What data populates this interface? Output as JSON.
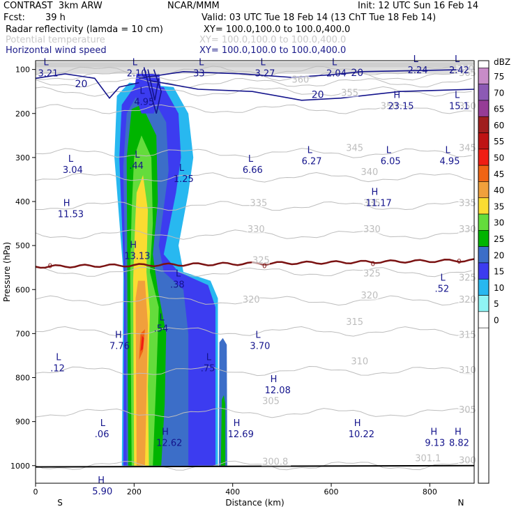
{
  "header": {
    "model": "CONTRAST  3km ARW",
    "center": "NCAR/MMM",
    "init": "Init: 12 UTC Sun 16 Feb 14",
    "fcst_label": "Fcst:",
    "fcst_value": "39 h",
    "valid": "Valid: 03 UTC Tue 18 Feb 14 (13 ChT Tue 18 Feb 14)",
    "fields": [
      {
        "name": "Radar reflectivity (lamda = 10 cm)",
        "xy": "XY= 100.0,100.0 to 100.0,400.0",
        "color": "#000000"
      },
      {
        "name": "Potential temperature",
        "xy": "XY= 100.0,100.0 to 100.0,400.0",
        "color": "#c8c8c8"
      },
      {
        "name": "Horizontal wind speed",
        "xy": "XY= 100.0,100.0 to 100.0,400.0",
        "color": "#1b1b8a"
      }
    ]
  },
  "chart_data": {
    "type": "cross-section",
    "xlabel": "Distance (km)",
    "ylabel": "Pressure (hPa)",
    "xlim": [
      0,
      890
    ],
    "ylim": [
      1040,
      80
    ],
    "x_ticks": [
      0,
      200,
      400,
      600,
      800
    ],
    "y_ticks": [
      100,
      200,
      300,
      400,
      500,
      600,
      700,
      800,
      900,
      1000
    ],
    "left_end_label": "S",
    "right_end_label": "N",
    "colorbar": {
      "unit": "dBZ",
      "levels": [
        0,
        5,
        10,
        15,
        20,
        25,
        30,
        35,
        40,
        45,
        50,
        55,
        60,
        65,
        70,
        75
      ],
      "colors": [
        "#ffffff",
        "#8ff4f4",
        "#28b8f0",
        "#3c3cf0",
        "#3c6ec8",
        "#00b400",
        "#64dc3c",
        "#fadc32",
        "#f0a03c",
        "#f06414",
        "#f01e14",
        "#be1414",
        "#a01e1e",
        "#963c96",
        "#8c5ab4",
        "#c88cc8"
      ]
    },
    "theta_labels": [
      {
        "value": "370",
        "x": 855,
        "p": 105
      },
      {
        "value": "365",
        "x": 860,
        "p": 115
      },
      {
        "value": "360",
        "x": 520,
        "p": 130
      },
      {
        "value": "355",
        "x": 620,
        "p": 160
      },
      {
        "value": "350",
        "x": 700,
        "p": 190
      },
      {
        "value": "350",
        "x": 860,
        "p": 190
      },
      {
        "value": "345",
        "x": 630,
        "p": 285
      },
      {
        "value": "345",
        "x": 860,
        "p": 285
      },
      {
        "value": "340",
        "x": 660,
        "p": 340
      },
      {
        "value": "335",
        "x": 435,
        "p": 410
      },
      {
        "value": "335",
        "x": 665,
        "p": 410
      },
      {
        "value": "335",
        "x": 860,
        "p": 410
      },
      {
        "value": "330",
        "x": 430,
        "p": 470
      },
      {
        "value": "330",
        "x": 665,
        "p": 470
      },
      {
        "value": "330",
        "x": 860,
        "p": 470
      },
      {
        "value": "325",
        "x": 440,
        "p": 540
      },
      {
        "value": "325",
        "x": 665,
        "p": 570
      },
      {
        "value": "325",
        "x": 860,
        "p": 580
      },
      {
        "value": "320",
        "x": 420,
        "p": 630
      },
      {
        "value": "320",
        "x": 660,
        "p": 620
      },
      {
        "value": "320",
        "x": 860,
        "p": 630
      },
      {
        "value": "315",
        "x": 630,
        "p": 680
      },
      {
        "value": "315",
        "x": 860,
        "p": 710
      },
      {
        "value": "310",
        "x": 640,
        "p": 770
      },
      {
        "value": "310",
        "x": 860,
        "p": 790
      },
      {
        "value": "305",
        "x": 460,
        "p": 860
      },
      {
        "value": "305",
        "x": 860,
        "p": 880
      },
      {
        "value": "301.1",
        "x": 770,
        "p": 990
      },
      {
        "value": "300",
        "x": 860,
        "p": 995
      },
      {
        "value": "300.8",
        "x": 460,
        "p": 998
      }
    ],
    "wind_contours": [
      {
        "value": "20",
        "x": 80,
        "p": 140
      },
      {
        "value": "20",
        "x": 640,
        "p": 115
      },
      {
        "value": "20",
        "x": 560,
        "p": 165
      }
    ],
    "zero_c_labels": [
      {
        "value": "0",
        "x": 25,
        "p": 545
      },
      {
        "value": "0",
        "x": 460,
        "p": 545
      },
      {
        "value": "0",
        "x": 680,
        "p": 540
      },
      {
        "value": "0",
        "x": 855,
        "p": 535
      }
    ],
    "extrema": [
      {
        "type": "L",
        "value": "3.21",
        "x": 5,
        "p": 90
      },
      {
        "type": "L",
        "value": "2.10",
        "x": 185,
        "p": 90
      },
      {
        "type": "L",
        "value": "33",
        "x": 320,
        "p": 90
      },
      {
        "type": "L",
        "value": "3.27",
        "x": 445,
        "p": 90
      },
      {
        "type": "L",
        "value": "2.04",
        "x": 590,
        "p": 90
      },
      {
        "type": "L",
        "value": "2.24",
        "x": 755,
        "p": 82
      },
      {
        "type": "L",
        "value": "2.42",
        "x": 860,
        "p": 82
      },
      {
        "type": "L",
        "value": "4.95",
        "x": 200,
        "p": 155
      },
      {
        "type": "H",
        "value": "23.15",
        "x": 715,
        "p": 165
      },
      {
        "type": "L",
        "value": "15.1",
        "x": 855,
        "p": 165
      },
      {
        "type": "L",
        "value": "3.04",
        "x": 55,
        "p": 310
      },
      {
        "type": "L",
        "value": ".44",
        "x": 190,
        "p": 300
      },
      {
        "type": "L",
        "value": "1.25",
        "x": 280,
        "p": 330
      },
      {
        "type": "L",
        "value": "6.66",
        "x": 420,
        "p": 310
      },
      {
        "type": "L",
        "value": "6.27",
        "x": 540,
        "p": 290
      },
      {
        "type": "L",
        "value": "6.05",
        "x": 700,
        "p": 290
      },
      {
        "type": "L",
        "value": "4.95",
        "x": 820,
        "p": 290
      },
      {
        "type": "H",
        "value": "11.53",
        "x": 45,
        "p": 410
      },
      {
        "type": "H",
        "value": "11.17",
        "x": 670,
        "p": 385
      },
      {
        "type": "H",
        "value": "13.13",
        "x": 180,
        "p": 505
      },
      {
        "type": "L",
        "value": ".38",
        "x": 273,
        "p": 570
      },
      {
        "type": "L",
        "value": ".52",
        "x": 810,
        "p": 580
      },
      {
        "type": "L",
        "value": ".54",
        "x": 240,
        "p": 670
      },
      {
        "type": "H",
        "value": "7.76",
        "x": 150,
        "p": 710
      },
      {
        "type": "L",
        "value": "3.70",
        "x": 435,
        "p": 710
      },
      {
        "type": "L",
        "value": ".12",
        "x": 30,
        "p": 760
      },
      {
        "type": "L",
        "value": ".75",
        "x": 335,
        "p": 760
      },
      {
        "type": "H",
        "value": "12.08",
        "x": 465,
        "p": 810
      },
      {
        "type": "L",
        "value": ".06",
        "x": 120,
        "p": 910
      },
      {
        "type": "H",
        "value": "12.62",
        "x": 245,
        "p": 930
      },
      {
        "type": "H",
        "value": "12.69",
        "x": 390,
        "p": 910
      },
      {
        "type": "H",
        "value": "10.22",
        "x": 635,
        "p": 910
      },
      {
        "type": "H",
        "value": "9.13",
        "x": 790,
        "p": 930
      },
      {
        "type": "H",
        "value": "8.82",
        "x": 855,
        "p": 930
      },
      {
        "type": "H",
        "value": "5.90",
        "x": 115,
        "p": 1040
      }
    ]
  }
}
